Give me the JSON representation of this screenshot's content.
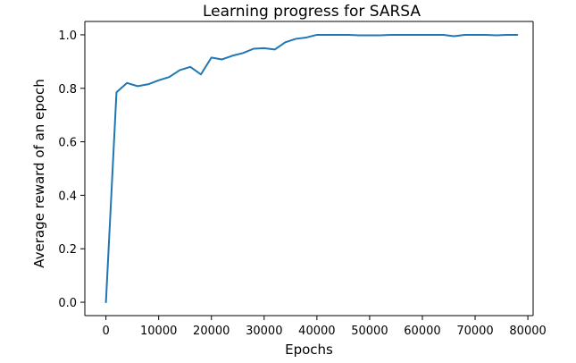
{
  "chart_data": {
    "type": "line",
    "title": "Learning progress for SARSA",
    "xlabel": "Epochs",
    "ylabel": "Average reward of an epoch",
    "xlim": [
      -4000,
      81000
    ],
    "ylim": [
      -0.05,
      1.05
    ],
    "xticks": [
      0,
      10000,
      20000,
      30000,
      40000,
      50000,
      60000,
      70000,
      80000
    ],
    "xtick_labels": [
      "0",
      "10000",
      "20000",
      "30000",
      "40000",
      "50000",
      "60000",
      "70000",
      "80000"
    ],
    "yticks": [
      0.0,
      0.2,
      0.4,
      0.6,
      0.8,
      1.0
    ],
    "ytick_labels": [
      "0.0",
      "0.2",
      "0.4",
      "0.6",
      "0.8",
      "1.0"
    ],
    "grid": false,
    "series": [
      {
        "color": "#1f77b4",
        "x": [
          0,
          2000,
          4000,
          6000,
          8000,
          10000,
          12000,
          14000,
          16000,
          18000,
          20000,
          22000,
          24000,
          26000,
          28000,
          30000,
          32000,
          34000,
          36000,
          38000,
          40000,
          42000,
          44000,
          46000,
          48000,
          50000,
          52000,
          54000,
          56000,
          58000,
          60000,
          62000,
          64000,
          66000,
          68000,
          70000,
          72000,
          74000,
          76000,
          78000
        ],
        "y": [
          0.0,
          0.785,
          0.82,
          0.808,
          0.815,
          0.83,
          0.842,
          0.868,
          0.88,
          0.852,
          0.915,
          0.908,
          0.922,
          0.932,
          0.948,
          0.95,
          0.945,
          0.972,
          0.985,
          0.99,
          1.0,
          1.0,
          1.0,
          1.0,
          0.998,
          0.998,
          0.998,
          1.0,
          1.0,
          1.0,
          1.0,
          1.0,
          1.0,
          0.995,
          1.0,
          1.0,
          1.0,
          0.998,
          1.0,
          1.0
        ]
      }
    ]
  }
}
